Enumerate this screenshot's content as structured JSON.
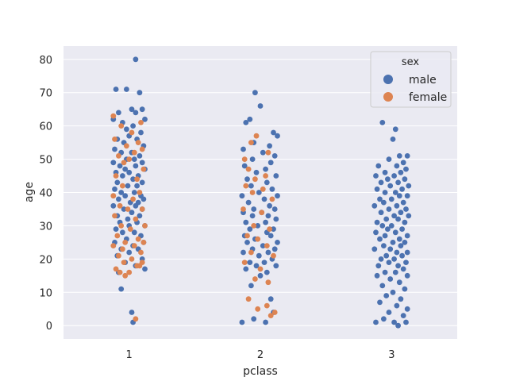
{
  "chart_data": {
    "type": "scatter",
    "subtype": "strip",
    "xlabel": "pclass",
    "ylabel": "age",
    "categories": [
      "1",
      "2",
      "3"
    ],
    "ylim": [
      -4,
      84
    ],
    "yticks": [
      0,
      10,
      20,
      30,
      40,
      50,
      60,
      70,
      80
    ],
    "grid": true,
    "legend": {
      "title": "sex",
      "placement": "top-right",
      "entries": [
        "male",
        "female"
      ]
    },
    "colors": {
      "male": "#4c72b0",
      "female": "#dd8452",
      "background": "#eaeaf2",
      "grid": "#ffffff"
    },
    "series": [
      {
        "name": "male",
        "points": [
          [
            0.05,
            80
          ],
          [
            -0.1,
            71
          ],
          [
            -0.02,
            71
          ],
          [
            0.08,
            70
          ],
          [
            0.02,
            65
          ],
          [
            0.1,
            65
          ],
          [
            0.05,
            64
          ],
          [
            -0.08,
            64
          ],
          [
            -0.12,
            62
          ],
          [
            0.12,
            62
          ],
          [
            -0.05,
            61
          ],
          [
            0.03,
            60
          ],
          [
            -0.02,
            59
          ],
          [
            0.09,
            58
          ],
          [
            0.0,
            57
          ],
          [
            -0.09,
            56
          ],
          [
            0.06,
            56
          ],
          [
            -0.04,
            55
          ],
          [
            0.11,
            54
          ],
          [
            -0.11,
            53
          ],
          [
            0.02,
            52
          ],
          [
            -0.06,
            52
          ],
          [
            0.08,
            51
          ],
          [
            -0.02,
            50
          ],
          [
            0.04,
            50
          ],
          [
            -0.12,
            49
          ],
          [
            0.1,
            49
          ],
          [
            -0.07,
            48
          ],
          [
            0.05,
            48
          ],
          [
            -0.03,
            47
          ],
          [
            0.12,
            47
          ],
          [
            -0.1,
            46
          ],
          [
            0.0,
            46
          ],
          [
            0.07,
            45
          ],
          [
            -0.05,
            45
          ],
          [
            0.03,
            44
          ],
          [
            -0.09,
            43
          ],
          [
            0.1,
            43
          ],
          [
            -0.01,
            42
          ],
          [
            0.06,
            42
          ],
          [
            -0.11,
            41
          ],
          [
            0.04,
            40
          ],
          [
            -0.06,
            40
          ],
          [
            0.09,
            39
          ],
          [
            -0.03,
            39
          ],
          [
            0.11,
            38
          ],
          [
            -0.08,
            38
          ],
          [
            0.01,
            37
          ],
          [
            0.07,
            37
          ],
          [
            -0.12,
            36
          ],
          [
            0.05,
            36
          ],
          [
            -0.04,
            35
          ],
          [
            0.1,
            35
          ],
          [
            0.02,
            34
          ],
          [
            -0.09,
            33
          ],
          [
            0.08,
            33
          ],
          [
            -0.01,
            32
          ],
          [
            0.06,
            31
          ],
          [
            -0.07,
            31
          ],
          [
            0.12,
            30
          ],
          [
            0.0,
            30
          ],
          [
            -0.1,
            29
          ],
          [
            0.04,
            28
          ],
          [
            -0.05,
            28
          ],
          [
            0.09,
            27
          ],
          [
            -0.02,
            26
          ],
          [
            0.11,
            25
          ],
          [
            -0.11,
            25
          ],
          [
            0.03,
            24
          ],
          [
            -0.06,
            23
          ],
          [
            0.07,
            23
          ],
          [
            0.0,
            22
          ],
          [
            -0.09,
            21
          ],
          [
            0.1,
            20
          ],
          [
            -0.03,
            19
          ],
          [
            0.05,
            18
          ],
          [
            0.12,
            17
          ],
          [
            -0.08,
            16
          ],
          [
            -0.06,
            11
          ],
          [
            0.02,
            4
          ],
          [
            0.03,
            1
          ],
          [
            0.96,
            70
          ],
          [
            1.0,
            66
          ],
          [
            0.92,
            62
          ],
          [
            0.89,
            61
          ],
          [
            1.1,
            58
          ],
          [
            1.13,
            57
          ],
          [
            0.95,
            55
          ],
          [
            1.07,
            54
          ],
          [
            0.87,
            53
          ],
          [
            1.02,
            52
          ],
          [
            1.11,
            51
          ],
          [
            0.94,
            50
          ],
          [
            1.08,
            49
          ],
          [
            0.88,
            48
          ],
          [
            1.04,
            47
          ],
          [
            0.97,
            46
          ],
          [
            1.12,
            45
          ],
          [
            0.9,
            44
          ],
          [
            1.05,
            43
          ],
          [
            0.93,
            42
          ],
          [
            1.09,
            41
          ],
          [
            0.99,
            40
          ],
          [
            0.86,
            39
          ],
          [
            1.13,
            39
          ],
          [
            1.03,
            38
          ],
          [
            0.91,
            37
          ],
          [
            1.07,
            36
          ],
          [
            0.95,
            35
          ],
          [
            1.11,
            35
          ],
          [
            0.87,
            34
          ],
          [
            1.01,
            34
          ],
          [
            1.06,
            33
          ],
          [
            0.94,
            33
          ],
          [
            1.12,
            32
          ],
          [
            0.89,
            31
          ],
          [
            1.04,
            31
          ],
          [
            0.98,
            30
          ],
          [
            1.1,
            29
          ],
          [
            0.92,
            29
          ],
          [
            1.05,
            28
          ],
          [
            0.88,
            27
          ],
          [
            1.08,
            27
          ],
          [
            0.96,
            26
          ],
          [
            1.13,
            25
          ],
          [
            0.9,
            25
          ],
          [
            1.02,
            24
          ],
          [
            0.94,
            23
          ],
          [
            1.11,
            23
          ],
          [
            0.87,
            22
          ],
          [
            1.06,
            22
          ],
          [
            0.99,
            21
          ],
          [
            1.09,
            20
          ],
          [
            0.92,
            19
          ],
          [
            1.03,
            19
          ],
          [
            0.97,
            18
          ],
          [
            1.12,
            18
          ],
          [
            0.89,
            17
          ],
          [
            1.05,
            16
          ],
          [
            1.0,
            15
          ],
          [
            0.93,
            12
          ],
          [
            1.08,
            8
          ],
          [
            0.86,
            1
          ],
          [
            0.95,
            2
          ],
          [
            1.04,
            1
          ],
          [
            1.1,
            4
          ],
          [
            1.93,
            61
          ],
          [
            2.03,
            59
          ],
          [
            2.01,
            56
          ],
          [
            2.06,
            51
          ],
          [
            2.12,
            51
          ],
          [
            1.98,
            50
          ],
          [
            2.09,
            49
          ],
          [
            1.9,
            48
          ],
          [
            2.04,
            48
          ],
          [
            2.11,
            47
          ],
          [
            1.95,
            46
          ],
          [
            2.07,
            46
          ],
          [
            1.88,
            45
          ],
          [
            2.02,
            45
          ],
          [
            2.1,
            44
          ],
          [
            1.97,
            44
          ],
          [
            2.05,
            43
          ],
          [
            1.92,
            43
          ],
          [
            2.13,
            42
          ],
          [
            1.99,
            42
          ],
          [
            2.08,
            41
          ],
          [
            1.89,
            41
          ],
          [
            2.03,
            40
          ],
          [
            1.95,
            40
          ],
          [
            2.12,
            39
          ],
          [
            2.06,
            39
          ],
          [
            1.91,
            38
          ],
          [
            2.0,
            38
          ],
          [
            2.09,
            37
          ],
          [
            1.94,
            37
          ],
          [
            2.04,
            36
          ],
          [
            1.87,
            36
          ],
          [
            2.11,
            35
          ],
          [
            1.98,
            35
          ],
          [
            2.07,
            34
          ],
          [
            1.92,
            34
          ],
          [
            2.02,
            33
          ],
          [
            2.13,
            33
          ],
          [
            1.96,
            32
          ],
          [
            2.05,
            32
          ],
          [
            1.89,
            31
          ],
          [
            2.1,
            31
          ],
          [
            2.0,
            30
          ],
          [
            1.93,
            30
          ],
          [
            2.08,
            29
          ],
          [
            1.97,
            29
          ],
          [
            2.03,
            28
          ],
          [
            1.88,
            28
          ],
          [
            2.12,
            27
          ],
          [
            1.95,
            27
          ],
          [
            2.06,
            26
          ],
          [
            1.91,
            26
          ],
          [
            2.01,
            25
          ],
          [
            2.1,
            25
          ],
          [
            1.94,
            24
          ],
          [
            2.07,
            24
          ],
          [
            1.99,
            23
          ],
          [
            1.87,
            23
          ],
          [
            2.04,
            22
          ],
          [
            2.12,
            22
          ],
          [
            1.96,
            21
          ],
          [
            2.08,
            21
          ],
          [
            1.92,
            20
          ],
          [
            2.02,
            20
          ],
          [
            2.11,
            19
          ],
          [
            1.98,
            19
          ],
          [
            2.05,
            18
          ],
          [
            1.9,
            18
          ],
          [
            2.09,
            17
          ],
          [
            1.95,
            16
          ],
          [
            2.03,
            16
          ],
          [
            1.89,
            15
          ],
          [
            2.12,
            15
          ],
          [
            1.99,
            14
          ],
          [
            2.06,
            13
          ],
          [
            1.93,
            12
          ],
          [
            2.1,
            11
          ],
          [
            2.01,
            10
          ],
          [
            1.96,
            9
          ],
          [
            2.07,
            8
          ],
          [
            1.91,
            7
          ],
          [
            2.04,
            6
          ],
          [
            2.12,
            5
          ],
          [
            1.98,
            4
          ],
          [
            2.09,
            3
          ],
          [
            1.94,
            2
          ],
          [
            2.02,
            1
          ],
          [
            2.11,
            1
          ],
          [
            1.88,
            1
          ],
          [
            2.05,
            0
          ]
        ]
      },
      {
        "name": "female",
        "points": [
          [
            -0.12,
            63
          ],
          [
            0.09,
            61
          ],
          [
            -0.06,
            60
          ],
          [
            0.02,
            58
          ],
          [
            -0.11,
            56
          ],
          [
            0.07,
            55
          ],
          [
            -0.02,
            54
          ],
          [
            0.1,
            53
          ],
          [
            0.04,
            52
          ],
          [
            -0.08,
            51
          ],
          [
            0.0,
            50
          ],
          [
            -0.04,
            49
          ],
          [
            0.11,
            47
          ],
          [
            -0.1,
            45
          ],
          [
            0.06,
            44
          ],
          [
            -0.05,
            42
          ],
          [
            0.08,
            40
          ],
          [
            -0.12,
            39
          ],
          [
            0.03,
            38
          ],
          [
            -0.07,
            36
          ],
          [
            0.1,
            35
          ],
          [
            -0.01,
            35
          ],
          [
            -0.11,
            33
          ],
          [
            0.05,
            32
          ],
          [
            -0.06,
            30
          ],
          [
            0.12,
            30
          ],
          [
            0.01,
            29
          ],
          [
            -0.09,
            27
          ],
          [
            0.07,
            26
          ],
          [
            -0.03,
            25
          ],
          [
            0.11,
            25
          ],
          [
            -0.12,
            24
          ],
          [
            0.04,
            24
          ],
          [
            -0.05,
            23
          ],
          [
            0.09,
            22
          ],
          [
            -0.08,
            21
          ],
          [
            0.02,
            20
          ],
          [
            0.1,
            19
          ],
          [
            -0.04,
            19
          ],
          [
            0.06,
            18
          ],
          [
            -0.1,
            17
          ],
          [
            0.0,
            16
          ],
          [
            -0.07,
            16
          ],
          [
            -0.03,
            15
          ],
          [
            0.08,
            18
          ],
          [
            0.05,
            2
          ],
          [
            0.88,
            50
          ],
          [
            0.97,
            57
          ],
          [
            0.93,
            55
          ],
          [
            1.06,
            52
          ],
          [
            0.91,
            47
          ],
          [
            1.04,
            45
          ],
          [
            0.96,
            44
          ],
          [
            0.89,
            42
          ],
          [
            1.02,
            41
          ],
          [
            0.94,
            40
          ],
          [
            1.09,
            38
          ],
          [
            0.87,
            35
          ],
          [
            1.01,
            34
          ],
          [
            0.95,
            30
          ],
          [
            1.07,
            29
          ],
          [
            0.9,
            27
          ],
          [
            0.98,
            26
          ],
          [
            1.05,
            24
          ],
          [
            0.93,
            22
          ],
          [
            1.1,
            21
          ],
          [
            0.88,
            19
          ],
          [
            1.0,
            17
          ],
          [
            0.96,
            14
          ],
          [
            1.06,
            13
          ],
          [
            0.91,
            8
          ],
          [
            0.98,
            5
          ],
          [
            1.05,
            6
          ],
          [
            1.11,
            4
          ],
          [
            1.08,
            3
          ]
        ]
      }
    ]
  },
  "page": {
    "legend_title": "sex",
    "legend_male": "male",
    "legend_female": "female",
    "xlabel": "pclass",
    "ylabel": "age"
  }
}
